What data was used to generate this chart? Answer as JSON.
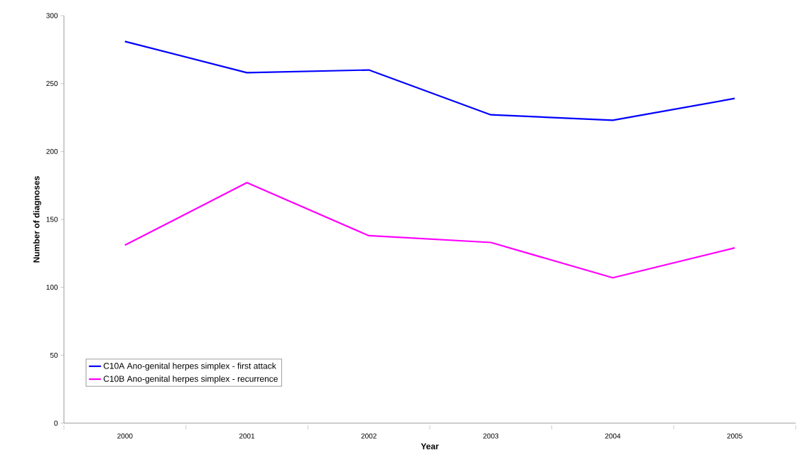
{
  "chart_data": {
    "type": "line",
    "xlabel": "Year",
    "ylabel": "Number of diagnoses",
    "categories": [
      "2000",
      "2001",
      "2002",
      "2003",
      "2004",
      "2005"
    ],
    "series": [
      {
        "name": "C10A Ano-genital herpes simplex - first attack",
        "color": "#0000ff",
        "values": [
          281,
          258,
          260,
          227,
          223,
          239
        ]
      },
      {
        "name": "C10B Ano-genital herpes simplex - recurrence",
        "color": "#ff00ff",
        "values": [
          131,
          177,
          138,
          133,
          107,
          129
        ]
      }
    ],
    "ylim": [
      0,
      300
    ],
    "yticks": [
      0,
      50,
      100,
      150,
      200,
      250,
      300
    ],
    "legend": "bottom left"
  }
}
